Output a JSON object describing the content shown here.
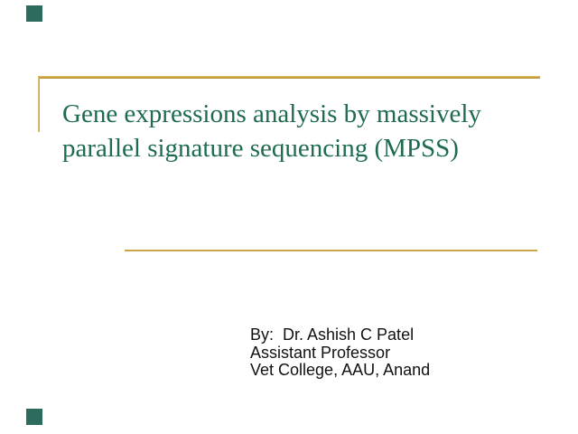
{
  "slide": {
    "kind": "presentation-title-slide",
    "title_lines": [
      "Gene expressions analysis by massively",
      "parallel signature sequencing (MPSS)"
    ],
    "author_lines": [
      "By:  Dr. Ashish C Patel",
      "Assistant Professor",
      "Vet College, AAU, Anand"
    ],
    "colors": {
      "title_green": "#1E6B4E",
      "accent_gold": "#C8A13B",
      "corner_teal": "#2E6B5F",
      "author_text": "#111111",
      "background": "#FFFFFF"
    }
  }
}
